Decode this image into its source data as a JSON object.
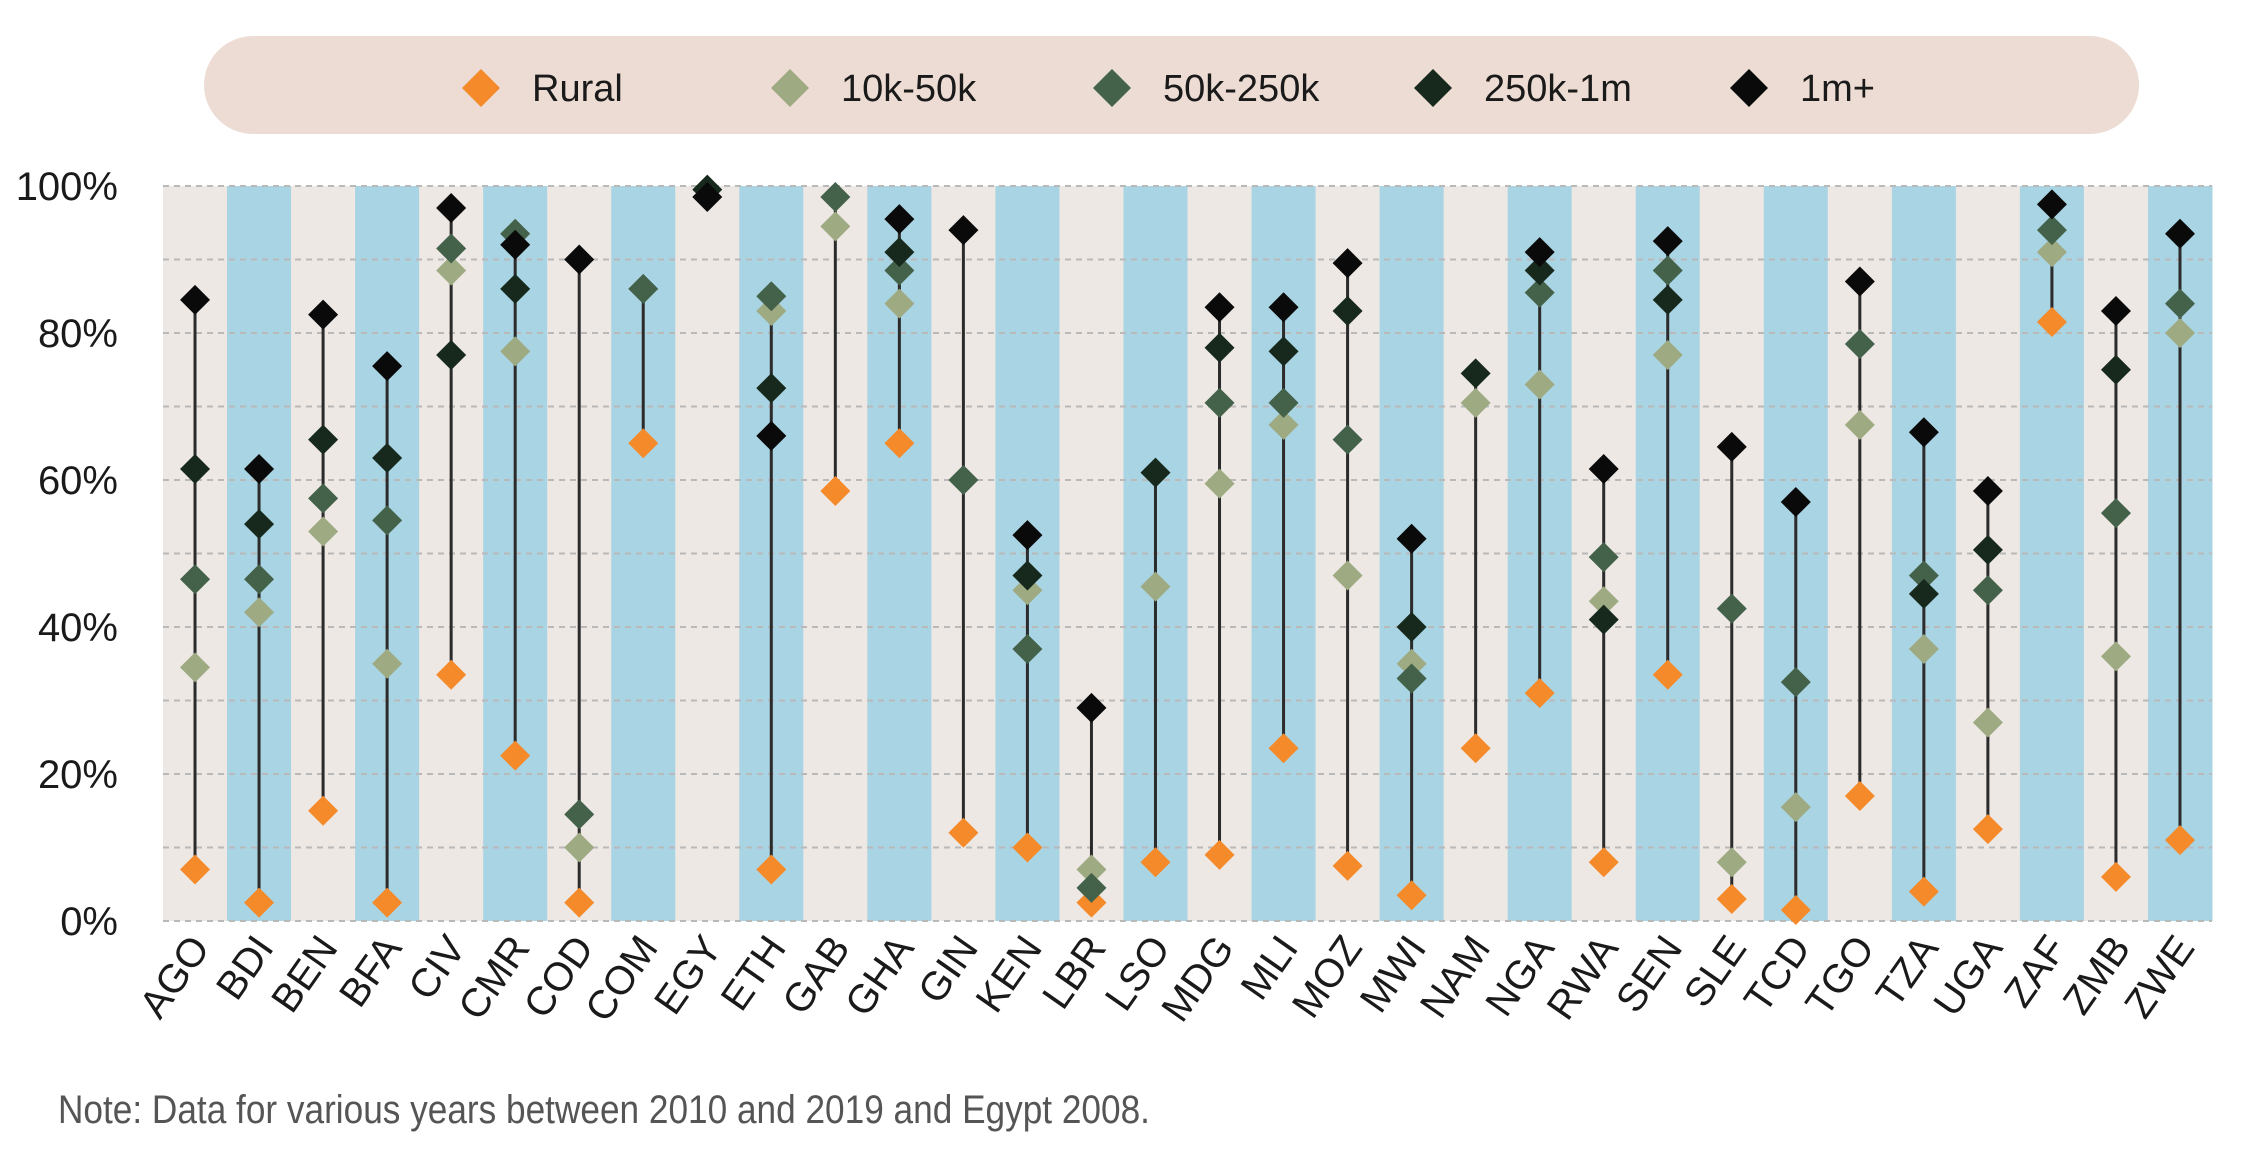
{
  "chart_data": {
    "type": "scatter",
    "style": "dot-range",
    "categories": [
      "AGO",
      "BDI",
      "BEN",
      "BFA",
      "CIV",
      "CMR",
      "COD",
      "COM",
      "EGY",
      "ETH",
      "GAB",
      "GHA",
      "GIN",
      "KEN",
      "LBR",
      "LSO",
      "MDG",
      "MLI",
      "MOZ",
      "MWI",
      "NAM",
      "NGA",
      "RWA",
      "SEN",
      "SLE",
      "TCD",
      "TGO",
      "TZA",
      "UGA",
      "ZAF",
      "ZMB",
      "ZWE"
    ],
    "series": [
      {
        "name": "Rural",
        "color": "#f58a2b",
        "values": [
          7,
          2.5,
          15,
          2.5,
          33.5,
          22.5,
          2.5,
          65,
          null,
          7,
          58.5,
          65,
          12,
          10,
          2.5,
          8,
          9,
          23.5,
          7.5,
          3.5,
          23.5,
          31,
          8,
          33.5,
          3,
          1.5,
          17,
          4,
          12.5,
          81.5,
          6,
          11
        ]
      },
      {
        "name": "10k-50k",
        "color": "#9eaa82",
        "values": [
          34.5,
          42,
          53,
          35,
          88.5,
          77.5,
          10,
          null,
          null,
          83,
          94.5,
          84,
          null,
          45,
          7,
          45.5,
          59.5,
          67.5,
          47,
          35,
          70.5,
          73,
          43.5,
          77,
          8,
          15.5,
          67.5,
          37,
          27,
          91,
          36,
          80
        ]
      },
      {
        "name": "50k-250k",
        "color": "#44614a",
        "values": [
          46.5,
          46.5,
          57.5,
          54.5,
          91.5,
          93.5,
          14.5,
          86,
          null,
          85,
          98.5,
          88.5,
          60,
          37,
          4.5,
          null,
          70.5,
          70.5,
          65.5,
          33,
          null,
          85.5,
          49.5,
          88.5,
          42.5,
          32.5,
          78.5,
          47,
          45,
          94,
          55.5,
          84
        ]
      },
      {
        "name": "250k-1m",
        "color": "#17291d",
        "values": [
          61.5,
          54,
          65.5,
          63,
          77,
          86,
          null,
          null,
          99.5,
          72.5,
          null,
          91,
          null,
          47,
          null,
          61,
          78,
          77.5,
          83,
          40,
          74.5,
          88.5,
          41,
          84.5,
          null,
          null,
          null,
          44.5,
          50.5,
          null,
          75,
          null
        ]
      },
      {
        "name": "1m+",
        "color": "#0a0a0a",
        "values": [
          84.5,
          61.5,
          82.5,
          75.5,
          97,
          92,
          90,
          null,
          98.5,
          66,
          null,
          95.5,
          94,
          52.5,
          29,
          null,
          83.5,
          83.5,
          89.5,
          52,
          null,
          91,
          61.5,
          92.5,
          64.5,
          57,
          87,
          66.5,
          58.5,
          97.5,
          83,
          93.5
        ]
      }
    ],
    "yticks": [
      "0%",
      "20%",
      "40%",
      "60%",
      "80%",
      "100%"
    ],
    "ylim": [
      0,
      100
    ],
    "grid": true,
    "legend_position": "top",
    "band_colors": [
      "#ede8e4",
      "#a9d4e3"
    ],
    "line_color": "#2b2b2b"
  },
  "note": "Note: Data for various years between 2010 and 2019 and Egypt 2008."
}
